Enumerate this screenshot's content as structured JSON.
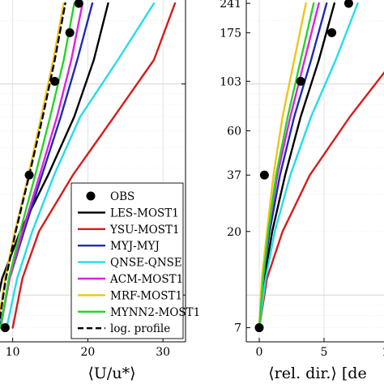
{
  "chart_data": [
    {
      "type": "line",
      "xlabel": "⟨U/u*⟩",
      "xticks": [
        10,
        20,
        30
      ],
      "xlim": [
        4,
        33
      ],
      "yscale": "log",
      "ylim": [
        6,
        250
      ],
      "grid": true,
      "legend_position": "bottom-right",
      "series": [
        {
          "name": "OBS",
          "kind": "points",
          "color": "#000000",
          "x": [
            9.0,
            12.2,
            15.6,
            17.6,
            18.8
          ],
          "y": [
            7,
            37,
            103,
            175,
            241
          ]
        },
        {
          "name": "LES-MOST1",
          "color": "#000000",
          "x": [
            7.2,
            8.6,
            11.0,
            14.7,
            18.2,
            20.8,
            22.7
          ],
          "y": [
            7,
            12,
            20,
            37,
            70,
            130,
            241
          ]
        },
        {
          "name": "YSU-MOST1",
          "color": "#d81b1b",
          "x": [
            10.0,
            11.3,
            13.5,
            18.0,
            23.5,
            28.8,
            31.6
          ],
          "y": [
            7,
            12,
            20,
            37,
            70,
            130,
            241
          ]
        },
        {
          "name": "MYJ-MYJ",
          "color": "#1f2bb0",
          "x": [
            8.3,
            9.6,
            11.5,
            13.9,
            16.4,
            18.6,
            20.6
          ],
          "y": [
            7,
            12,
            20,
            37,
            70,
            130,
            241
          ]
        },
        {
          "name": "QNSE-QNSE",
          "color": "#22dde8",
          "x": [
            9.2,
            10.6,
            12.6,
            15.5,
            19.0,
            24.0,
            28.8
          ],
          "y": [
            7,
            12,
            20,
            37,
            70,
            130,
            241
          ]
        },
        {
          "name": "ACM-MOST1",
          "color": "#e020e0",
          "x": [
            8.4,
            9.6,
            11.3,
            13.6,
            15.9,
            17.8,
            19.3
          ],
          "y": [
            7,
            12,
            20,
            37,
            70,
            130,
            241
          ]
        },
        {
          "name": "MRF-MOST1",
          "color": "#f0c419",
          "x": [
            8.0,
            9.0,
            10.3,
            12.1,
            13.8,
            15.4,
            16.8
          ],
          "y": [
            7,
            12,
            20,
            37,
            70,
            130,
            241
          ]
        },
        {
          "name": "MYNN2-MOST1",
          "color": "#28d228",
          "x": [
            8.4,
            9.5,
            11.0,
            13.0,
            15.0,
            16.8,
            18.2
          ],
          "y": [
            7,
            12,
            20,
            37,
            70,
            130,
            241
          ]
        },
        {
          "name": "log. profile",
          "color": "#000000",
          "dashed": true,
          "x": [
            8.1,
            9.1,
            10.4,
            12.2,
            14.0,
            15.6,
            17.0
          ],
          "y": [
            7,
            12,
            20,
            37,
            70,
            130,
            241
          ]
        }
      ]
    },
    {
      "type": "line",
      "xlabel": "⟨rel. dir.⟩ [de",
      "xticks": [
        0,
        5,
        10
      ],
      "xlim": [
        -1,
        12.5
      ],
      "yscale": "log",
      "ylim": [
        6,
        250
      ],
      "yticks": [
        7,
        20,
        37,
        60,
        103,
        175,
        241
      ],
      "grid": true,
      "series": [
        {
          "name": "OBS",
          "kind": "points",
          "color": "#000000",
          "x": [
            0.0,
            0.4,
            3.2,
            5.6,
            6.9
          ],
          "y": [
            7,
            37,
            103,
            175,
            241
          ]
        },
        {
          "name": "LES-MOST1",
          "color": "#000000",
          "x": [
            0.0,
            0.4,
            1.0,
            2.0,
            3.2,
            4.6,
            5.8
          ],
          "y": [
            7,
            12,
            20,
            37,
            70,
            130,
            241
          ]
        },
        {
          "name": "YSU-MOST1",
          "color": "#d81b1b",
          "x": [
            0.0,
            0.6,
            1.8,
            3.9,
            7.0,
            10.4,
            13.5
          ],
          "y": [
            7,
            12,
            20,
            37,
            70,
            130,
            241
          ]
        },
        {
          "name": "MYJ-MYJ",
          "color": "#1f2bb0",
          "x": [
            0.0,
            0.3,
            0.8,
            1.6,
            2.7,
            4.0,
            5.2
          ],
          "y": [
            7,
            12,
            20,
            37,
            70,
            130,
            241
          ]
        },
        {
          "name": "QNSE-QNSE",
          "color": "#22dde8",
          "x": [
            0.0,
            0.5,
            1.2,
            2.4,
            4.0,
            5.9,
            7.6
          ],
          "y": [
            7,
            12,
            20,
            37,
            70,
            130,
            241
          ]
        },
        {
          "name": "ACM-MOST1",
          "color": "#e020e0",
          "x": [
            0.0,
            0.3,
            0.7,
            1.4,
            2.4,
            3.5,
            4.6
          ],
          "y": [
            7,
            12,
            20,
            37,
            70,
            130,
            241
          ]
        },
        {
          "name": "MRF-MOST1",
          "color": "#f0c419",
          "x": [
            0.0,
            0.2,
            0.6,
            1.1,
            1.8,
            2.7,
            3.6
          ],
          "y": [
            7,
            12,
            20,
            37,
            70,
            130,
            241
          ]
        },
        {
          "name": "MYNN2-MOST1",
          "color": "#28d228",
          "x": [
            0.0,
            0.3,
            0.7,
            1.3,
            2.2,
            3.2,
            4.2
          ],
          "y": [
            7,
            12,
            20,
            37,
            70,
            130,
            241
          ]
        }
      ]
    }
  ]
}
